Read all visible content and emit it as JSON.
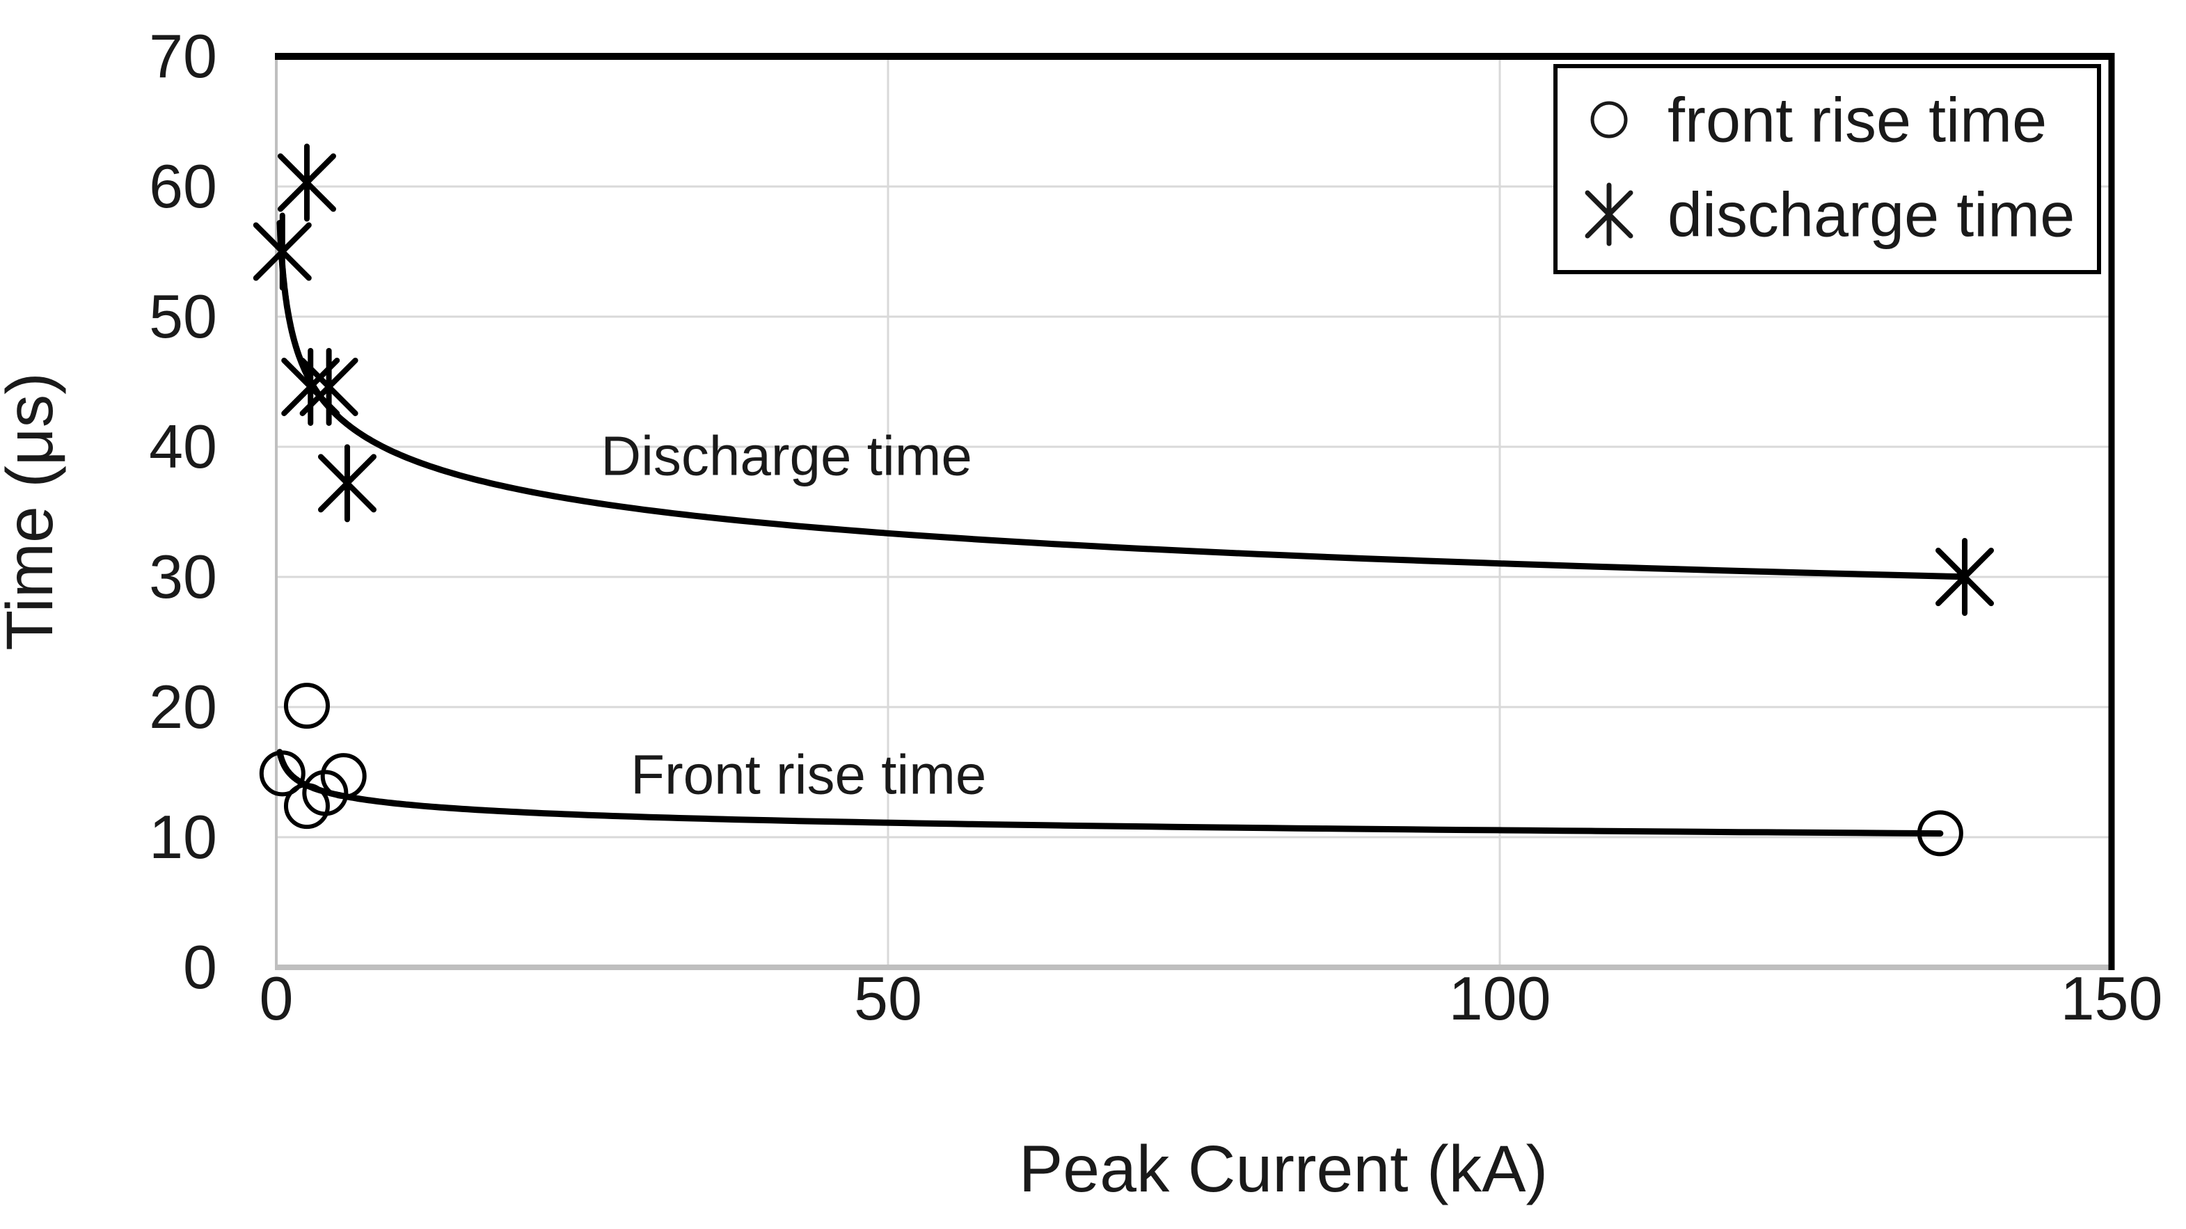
{
  "colors": {
    "background": "#ffffff",
    "text": "#1a1a1a",
    "grid": "#d9d9d9",
    "axis": "#bfbfbf",
    "ink": "#000000"
  },
  "legend": {
    "items": [
      {
        "marker": "circle-marker-icon",
        "label": "front rise time"
      },
      {
        "marker": "asterisk-marker-icon",
        "label": "discharge time"
      }
    ]
  },
  "chart_data": {
    "type": "scatter",
    "title": "",
    "xlabel": "Peak Current (kA)",
    "ylabel": "Time (μs)",
    "xlim": [
      0,
      150
    ],
    "ylim": [
      0,
      70
    ],
    "xticks": [
      0,
      50,
      100,
      150
    ],
    "yticks": [
      0,
      10,
      20,
      30,
      40,
      50,
      60,
      70
    ],
    "grid": true,
    "legend_position": "top-right",
    "series": [
      {
        "name": "front rise time",
        "marker": "circle",
        "points": [
          {
            "x": 0.5,
            "y": 14.9
          },
          {
            "x": 2.5,
            "y": 20.1
          },
          {
            "x": 2.5,
            "y": 12.4
          },
          {
            "x": 4.0,
            "y": 13.4
          },
          {
            "x": 5.5,
            "y": 14.7
          },
          {
            "x": 136,
            "y": 10.3
          }
        ],
        "trendline": {
          "type": "power",
          "a": 15.0,
          "b": -0.0767,
          "x_start": 0.28,
          "x_end": 136
        }
      },
      {
        "name": "discharge time",
        "marker": "asterisk",
        "points": [
          {
            "x": 0.5,
            "y": 55.0
          },
          {
            "x": 2.5,
            "y": 60.3
          },
          {
            "x": 2.8,
            "y": 44.6
          },
          {
            "x": 4.3,
            "y": 44.6
          },
          {
            "x": 5.8,
            "y": 37.2
          },
          {
            "x": 138,
            "y": 30.0
          }
        ],
        "trendline": {
          "type": "power",
          "a": 50.1,
          "b": -0.104,
          "x_start": 0.28,
          "x_end": 138
        }
      }
    ],
    "annotations": [
      {
        "text": "Discharge time",
        "x": 41.7,
        "y": 39.3
      },
      {
        "text": "Front rise time",
        "x": 43.5,
        "y": 14.8
      }
    ]
  }
}
